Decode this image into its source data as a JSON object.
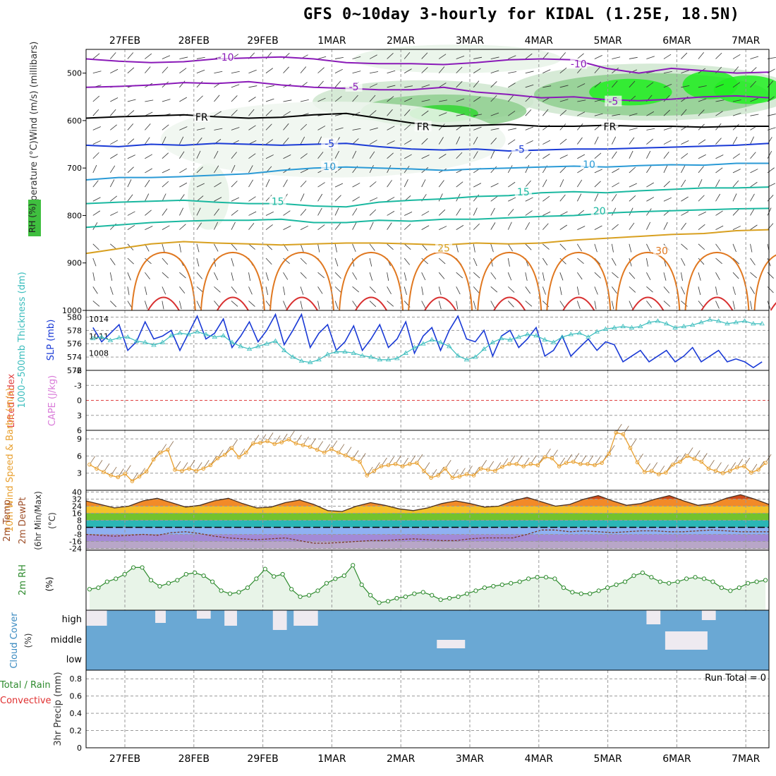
{
  "title": "GFS 0~10day 3-hourly for KIDAL (1.25E, 18.5N)",
  "colors": {
    "grid": "#9a9a9a",
    "slp": "#1a3ad6",
    "thickness": "#3bbdbd",
    "cape": "#d97bd9",
    "lifted_index": "#e04040",
    "wind_speed": "#e8a030",
    "rh": "#2e8b2e",
    "cloud": "#6aa8d4",
    "precip_total": "#2e8b2e",
    "precip_conv": "#e03030",
    "temp_fill": "#d04a1a"
  },
  "chart_data": [
    {
      "id": "upper-air",
      "type": "contour",
      "x_labels_top": [
        "27FEB",
        "28FEB",
        "29FEB",
        "1MAR",
        "2MAR",
        "3MAR",
        "4MAR",
        "5MAR",
        "6MAR",
        "7MAR"
      ],
      "ylabel": "Temperature (°C)Wind (m/s) (millibars)",
      "yaxis_label_legend": "RH (%)",
      "yticks": [
        500,
        600,
        700,
        800,
        900,
        1000
      ],
      "ylim": [
        450,
        1000
      ],
      "contour_labels": [
        {
          "text": "-10",
          "x": 1.45,
          "p": 468,
          "color": "#8a1ab8"
        },
        {
          "text": "-10",
          "x": 6.55,
          "p": 482,
          "color": "#8a1ab8"
        },
        {
          "text": "-5",
          "x": 3.3,
          "p": 530,
          "color": "#8a1ab8"
        },
        {
          "text": "-5",
          "x": 7.05,
          "p": 561,
          "color": "#8a1ab8"
        },
        {
          "text": "FR",
          "x": 1.1,
          "p": 594,
          "color": "#000000"
        },
        {
          "text": "FR",
          "x": 4.3,
          "p": 614,
          "color": "#000000"
        },
        {
          "text": "FR",
          "x": 7.0,
          "p": 614,
          "color": "#000000"
        },
        {
          "text": "-5",
          "x": 2.95,
          "p": 650,
          "color": "#1a3ad6"
        },
        {
          "text": "-5",
          "x": 5.7,
          "p": 662,
          "color": "#1a3ad6"
        },
        {
          "text": "10",
          "x": 2.95,
          "p": 698,
          "color": "#2a9ad6"
        },
        {
          "text": "10",
          "x": 6.7,
          "p": 694,
          "color": "#2a9ad6"
        },
        {
          "text": "15",
          "x": 2.2,
          "p": 772,
          "color": "#1ab8a0"
        },
        {
          "text": "15",
          "x": 5.75,
          "p": 752,
          "color": "#1ab8a0"
        },
        {
          "text": "20",
          "x": 6.85,
          "p": 792,
          "color": "#1ab8a0"
        },
        {
          "text": "25",
          "x": 4.6,
          "p": 870,
          "color": "#d8a020"
        },
        {
          "text": "30",
          "x": 7.75,
          "p": 876,
          "color": "#e07820"
        }
      ],
      "isotherms": [
        {
          "label": "-10",
          "color": "#8a1ab8",
          "p": [
            470,
            475,
            478,
            476,
            470,
            468,
            466,
            470,
            478,
            480,
            480,
            482,
            478,
            472,
            470,
            472,
            490,
            500,
            490,
            495,
            500,
            498
          ]
        },
        {
          "label": "-5",
          "color": "#8a1ab8",
          "p": [
            530,
            528,
            525,
            520,
            522,
            518,
            525,
            530,
            532,
            535,
            535,
            530,
            540,
            545,
            552,
            550,
            556,
            558,
            555,
            550,
            548,
            552
          ]
        },
        {
          "label": "FR",
          "color": "#000000",
          "p": [
            595,
            592,
            590,
            588,
            592,
            595,
            593,
            588,
            585,
            595,
            605,
            612,
            610,
            608,
            612,
            612,
            610,
            612,
            612,
            614,
            612,
            612
          ]
        },
        {
          "label": "-5",
          "color": "#1a3ad6",
          "p": [
            652,
            655,
            650,
            652,
            648,
            650,
            652,
            650,
            648,
            655,
            660,
            662,
            660,
            664,
            662,
            660,
            660,
            658,
            656,
            654,
            652,
            648
          ]
        },
        {
          "label": "10",
          "color": "#2a9ad6",
          "p": [
            725,
            720,
            720,
            718,
            715,
            712,
            705,
            700,
            698,
            700,
            702,
            705,
            702,
            700,
            698,
            696,
            698,
            695,
            693,
            694,
            690,
            690
          ]
        },
        {
          "label": "15",
          "color": "#1ab8a0",
          "p": [
            775,
            772,
            770,
            768,
            772,
            775,
            775,
            780,
            782,
            772,
            768,
            765,
            760,
            758,
            752,
            750,
            752,
            748,
            745,
            742,
            742,
            740
          ]
        },
        {
          "label": "20",
          "color": "#1ab8a0",
          "p": [
            825,
            820,
            815,
            812,
            810,
            810,
            808,
            815,
            815,
            810,
            812,
            808,
            808,
            805,
            802,
            800,
            795,
            792,
            790,
            788,
            786,
            785
          ]
        },
        {
          "label": "25",
          "color": "#d8a020",
          "p": [
            880,
            870,
            860,
            855,
            858,
            860,
            862,
            860,
            858,
            858,
            860,
            862,
            858,
            860,
            858,
            852,
            848,
            844,
            840,
            838,
            832,
            830
          ]
        }
      ],
      "rh_shading": "green shading 70/80/90% upper levels 2MAR-7MAR"
    },
    {
      "id": "slp-thickness",
      "type": "line",
      "ylabel_left": "1000~500mb Thickness (dm)",
      "ylabel_right": "SLP (mb)",
      "yticks_thickness": [
        572,
        574,
        576,
        578,
        580
      ],
      "yticks_slp": [
        1008,
        1011,
        1014
      ],
      "ylim_thickness": [
        572,
        581
      ],
      "series": [
        {
          "name": "SLP",
          "axis": "slp",
          "values": [
            1012.5,
            1010,
            1011.5,
            1013,
            1008.5,
            1010,
            1013.5,
            1010.5,
            1011,
            1012,
            1008.5,
            1011.5,
            1014.5,
            1010.5,
            1011.5,
            1014,
            1009,
            1011,
            1013.5,
            1010,
            1012,
            1014.8,
            1009.5,
            1012,
            1014.8,
            1009,
            1011.5,
            1013,
            1008.5,
            1010,
            1012.8,
            1008.5,
            1010.5,
            1013,
            1009,
            1010.5,
            1013.5,
            1008,
            1011,
            1012.5,
            1008.5,
            1012,
            1014.5,
            1010.5,
            1010,
            1012,
            1007.5,
            1011,
            1012,
            1009,
            1010.5,
            1012.5,
            1007.5,
            1008.5,
            1011,
            1007.5,
            1009,
            1010.5,
            1008.5,
            1010,
            1009.5,
            1006.5,
            1007.5,
            1008.5,
            1006.5,
            1007.5,
            1008.5,
            1006.5,
            1007.5,
            1009,
            1006.5,
            1007.5,
            1008.5,
            1006.5,
            1007,
            1006.5,
            1005.5,
            1006.5
          ]
        },
        {
          "name": "Thickness",
          "axis": "thickness",
          "values": [
            576.8,
            577,
            576.5,
            576.9,
            577,
            576.4,
            576.2,
            575.8,
            576.2,
            577.2,
            577.6,
            577.4,
            577.8,
            577.4,
            577,
            577.2,
            576.2,
            575.6,
            575.2,
            575.6,
            576,
            576.4,
            575,
            574,
            573.4,
            573.2,
            573.6,
            574.4,
            574.8,
            574.8,
            574.6,
            574.2,
            574,
            573.6,
            573.6,
            573.8,
            574.6,
            575.4,
            576,
            576.6,
            576.2,
            575.6,
            574.2,
            573.6,
            574,
            575.2,
            576.2,
            576.8,
            576.6,
            577,
            577.4,
            577.2,
            576.6,
            576.2,
            577,
            577.4,
            577.6,
            577,
            577.8,
            578.2,
            578.4,
            578.6,
            578.4,
            578.6,
            579.2,
            579.4,
            579,
            578.4,
            578.6,
            578.8,
            579.2,
            579.6,
            579.4,
            579,
            579.2,
            579.4,
            579,
            579
          ]
        }
      ]
    },
    {
      "id": "cape-li",
      "type": "line",
      "ylabel_left": "Lifted Index",
      "ylabel_right": "CAPE (J/kg)",
      "yticks": [
        -6,
        -3,
        0,
        3,
        6
      ],
      "yticks_labels": [
        "-6",
        "-3",
        "0",
        "3",
        "6"
      ],
      "ylim": [
        -6,
        6
      ]
    },
    {
      "id": "wind10m",
      "type": "line",
      "ylabel": "10m Wind Speed & Barbs (m/s)",
      "yticks": [
        3,
        6,
        9
      ],
      "ylim": [
        0,
        10.5
      ],
      "series": [
        {
          "name": "Speed",
          "values": [
            4.5,
            3.8,
            3.2,
            2.6,
            2.3,
            2.9,
            1.6,
            2.4,
            3.3,
            5.4,
            6.6,
            7.1,
            3.6,
            3.4,
            3.8,
            3.4,
            3.8,
            4.4,
            5.6,
            6.2,
            7.4,
            5.8,
            6.6,
            8.2,
            8.3,
            8.6,
            8.1,
            8.4,
            8.9,
            8.2,
            7.9,
            7.6,
            7.1,
            6.6,
            7.2,
            6.6,
            6.1,
            5.5,
            5.0,
            2.6,
            3.4,
            4.2,
            4.4,
            4.6,
            4.2,
            4.6,
            4.8,
            3.4,
            2.2,
            2.6,
            3.8,
            2.2,
            2.4,
            2.8,
            2.6,
            3.8,
            3.6,
            3.4,
            4.1,
            4.6,
            4.6,
            4.2,
            4.6,
            4.4,
            5.8,
            5.6,
            4.2,
            4.8,
            5.0,
            4.6,
            4.6,
            4.4,
            4.8,
            6.4,
            10.1,
            9.8,
            7.4,
            4.9,
            3.2,
            3.4,
            2.8,
            3.1,
            4.5,
            5.0,
            6.0,
            5.5,
            5.0,
            3.8,
            3.4,
            3.0,
            3.4,
            4.0,
            4.2,
            3.1,
            3.6,
            4.8
          ]
        }
      ]
    },
    {
      "id": "temp2m",
      "type": "area",
      "ylabel": "2m Temp 2m DewPt (6hr Min/Max) (°C)",
      "yticks": [
        -24,
        -16,
        -8,
        0,
        8,
        16,
        24,
        32,
        40
      ],
      "ylim": [
        -26,
        42
      ],
      "series": [
        {
          "name": "Temp",
          "values": [
            30,
            26,
            22,
            24,
            30,
            33,
            28,
            23,
            25,
            30,
            33,
            27,
            22,
            23,
            28,
            31,
            26,
            19,
            18,
            24,
            28,
            25,
            21,
            19,
            22,
            27,
            30,
            27,
            23,
            24,
            30,
            34,
            29,
            24,
            26,
            32,
            36,
            30,
            25,
            27,
            32,
            36,
            30,
            25,
            27,
            33,
            37,
            32,
            26
          ]
        },
        {
          "name": "DewPt",
          "values": [
            -8,
            -9,
            -10,
            -9,
            -8,
            -9,
            -6,
            -5,
            -7,
            -10,
            -12,
            -13,
            -14,
            -13,
            -12,
            -15,
            -18,
            -18,
            -17,
            -16,
            -15,
            -15,
            -14,
            -13,
            -14,
            -15,
            -15,
            -13,
            -12,
            -12,
            -12,
            -8,
            -3,
            -3,
            -5,
            -4,
            -5,
            -6,
            -5,
            -4,
            -4,
            -5,
            -5,
            -4,
            -3,
            -4,
            -5,
            -5,
            -5
          ]
        }
      ]
    },
    {
      "id": "rh2m",
      "type": "line",
      "ylabel": "2m RH (%)",
      "ylim": [
        0,
        80
      ],
      "series": [
        {
          "name": "RH",
          "values": [
            28,
            30,
            38,
            42,
            48,
            57,
            57,
            40,
            32,
            36,
            40,
            48,
            50,
            46,
            38,
            26,
            22,
            24,
            30,
            42,
            55,
            45,
            48,
            28,
            18,
            20,
            26,
            36,
            42,
            46,
            60,
            34,
            20,
            10,
            12,
            16,
            18,
            22,
            24,
            20,
            14,
            16,
            18,
            22,
            26,
            30,
            32,
            34,
            36,
            38,
            42,
            44,
            44,
            42,
            30,
            24,
            22,
            22,
            26,
            30,
            34,
            38,
            46,
            50,
            44,
            38,
            36,
            38,
            42,
            44,
            42,
            38,
            30,
            26,
            30,
            36,
            38,
            40
          ]
        }
      ]
    },
    {
      "id": "cloud",
      "type": "heatmap",
      "ylabel": "Cloud Cover (%)",
      "ytick_labels": [
        "high",
        "middle",
        "low"
      ]
    },
    {
      "id": "precip",
      "type": "bar",
      "ylabel": "3hr Precip (mm)",
      "ylabel_extra_green": "Total / Rain",
      "ylabel_extra_red": "Convective",
      "yticks": [
        0,
        0.2,
        0.4,
        0.6,
        0.8
      ],
      "ytick_labels": [
        "0",
        "0.2",
        "0.4",
        "0.6",
        "0.8"
      ],
      "ylim": [
        0,
        0.9
      ],
      "run_total": "Run Total = 0",
      "x_labels_bottom": [
        "27FEB",
        "28FEB",
        "29FEB",
        "1MAR",
        "2MAR",
        "3MAR",
        "4MAR",
        "5MAR",
        "6MAR",
        "7MAR"
      ]
    }
  ]
}
